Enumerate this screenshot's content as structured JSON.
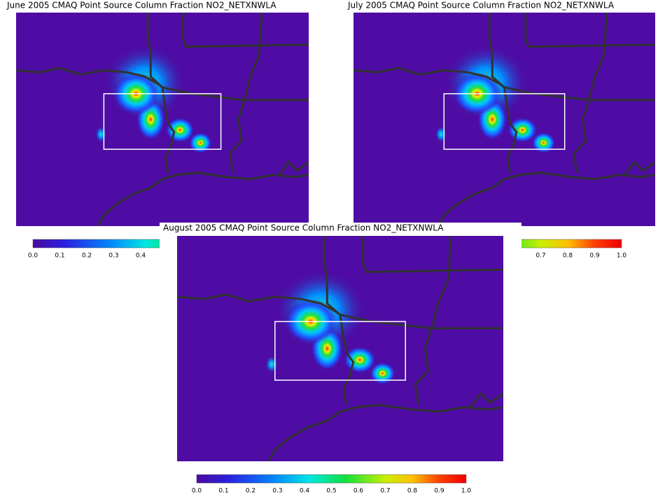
{
  "panels": [
    {
      "title": "June 2005 CMAQ Point Source Column Fraction NO2_NETXNWLA"
    },
    {
      "title": "July 2005 CMAQ Point Source Column Fraction NO2_NETXNWLA"
    },
    {
      "title": "August 2005 CMAQ Point Source Column Fraction NO2_NETXNWLA"
    }
  ],
  "colorbar": {
    "lim": [
      0,
      1
    ],
    "ticks": [
      {
        "value": 0,
        "label": "0.0"
      },
      {
        "value": 0.1,
        "label": "0.1"
      },
      {
        "value": 0.2,
        "label": "0.2"
      },
      {
        "value": 0.3,
        "label": "0.3"
      },
      {
        "value": 0.4,
        "label": "0.4"
      },
      {
        "value": 0.5,
        "label": "0.5"
      },
      {
        "value": 0.6,
        "label": "0.6"
      },
      {
        "value": 0.7,
        "label": "0.7"
      },
      {
        "value": 0.8,
        "label": "0.8"
      },
      {
        "value": 0.9,
        "label": "0.9"
      },
      {
        "value": 1,
        "label": "1.0"
      }
    ]
  }
}
